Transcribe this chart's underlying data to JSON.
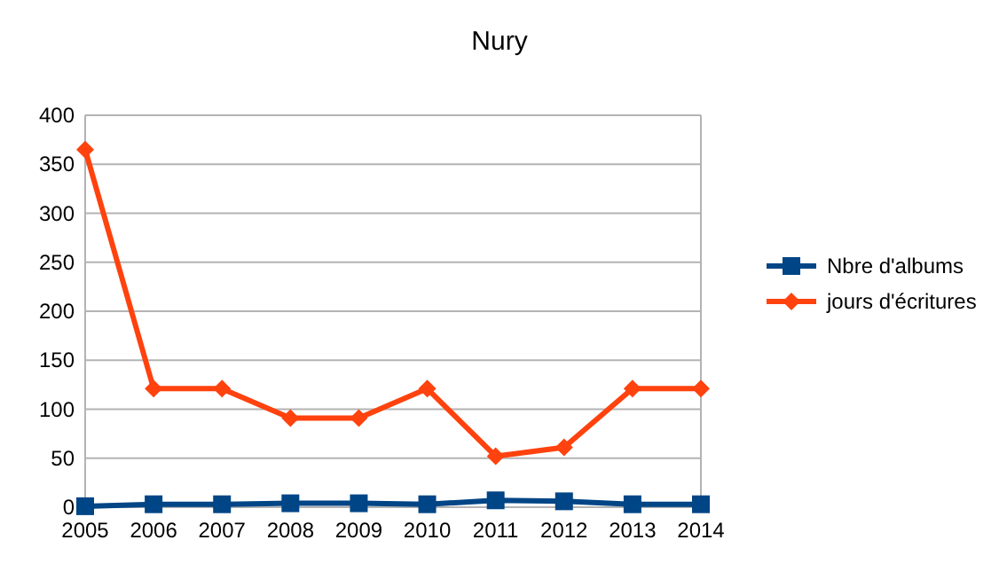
{
  "chart_data": {
    "type": "line",
    "title": "Nury",
    "categories": [
      "2005",
      "2006",
      "2007",
      "2008",
      "2009",
      "2010",
      "2011",
      "2012",
      "2013",
      "2014"
    ],
    "series": [
      {
        "name": "Nbre d'albums",
        "color": "#004586",
        "marker": "square",
        "values": [
          1,
          3,
          3,
          4,
          4,
          3,
          7,
          6,
          3,
          3
        ]
      },
      {
        "name": "jours d'écritures",
        "color": "#ff420e",
        "marker": "diamond",
        "values": [
          365,
          121,
          121,
          91,
          91,
          121,
          52,
          61,
          121,
          121
        ]
      }
    ],
    "ylim": [
      0,
      400
    ],
    "yticks": [
      0,
      50,
      100,
      150,
      200,
      250,
      300,
      350,
      400
    ],
    "grid": "y",
    "legend": "right"
  }
}
